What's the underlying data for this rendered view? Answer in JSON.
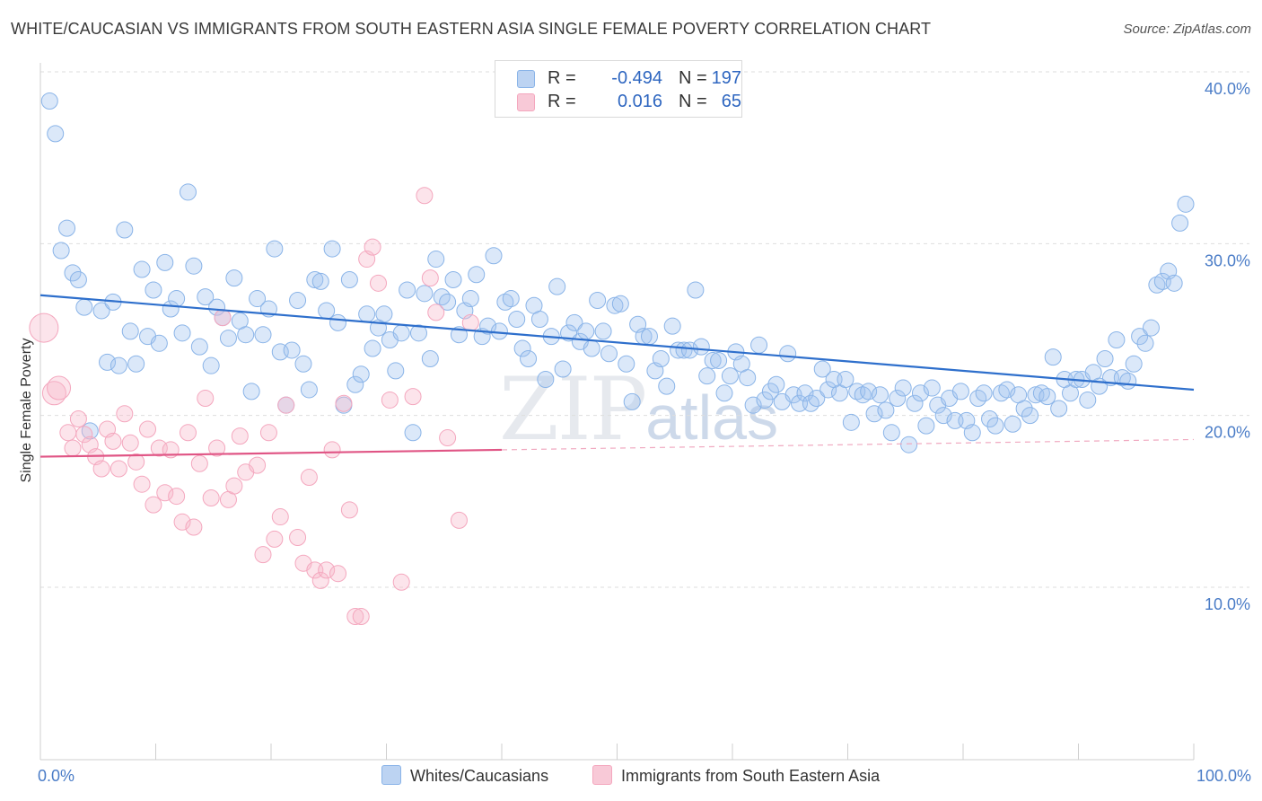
{
  "title": "WHITE/CAUCASIAN VS IMMIGRANTS FROM SOUTH EASTERN ASIA SINGLE FEMALE POVERTY CORRELATION CHART",
  "source": "Source: ZipAtlas.com",
  "watermark": {
    "zip": "ZIP",
    "atlas": "atlas"
  },
  "legend": {
    "rows": [
      {
        "r_label": "R =",
        "r_value": "-0.494",
        "n_label": "N =",
        "n_value": "197"
      },
      {
        "r_label": "R =",
        "r_value": "0.016",
        "n_label": "N =",
        "n_value": "65"
      }
    ]
  },
  "chart_data": {
    "type": "scatter",
    "ylabel": "Single Female Poverty",
    "xlim": [
      0,
      100
    ],
    "ylim": [
      0,
      42
    ],
    "x_ticks": [
      "0.0%",
      "100.0%"
    ],
    "y_ticks": [
      {
        "value": 10,
        "label": "10.0%"
      },
      {
        "value": 20,
        "label": "20.0%"
      },
      {
        "value": 30,
        "label": "30.0%"
      },
      {
        "value": 40,
        "label": "40.0%"
      }
    ],
    "grid": true,
    "legend_position": "top-center",
    "series": [
      {
        "name": "Whites/Caucasians",
        "color": "#8ab4e8",
        "line_color": "#2e6fcc",
        "trend": {
          "x0": 0,
          "y0": 27.0,
          "x1": 100,
          "y1": 21.5
        },
        "points": [
          [
            0.8,
            38.3
          ],
          [
            1.3,
            36.4
          ],
          [
            1.8,
            29.6
          ],
          [
            2.3,
            30.9
          ],
          [
            2.8,
            28.3
          ],
          [
            3.3,
            27.9
          ],
          [
            3.8,
            26.3
          ],
          [
            4.3,
            19.1
          ],
          [
            5.3,
            26.1
          ],
          [
            5.8,
            23.1
          ],
          [
            6.3,
            26.6
          ],
          [
            6.8,
            22.9
          ],
          [
            7.3,
            30.8
          ],
          [
            7.8,
            24.9
          ],
          [
            8.3,
            23.0
          ],
          [
            8.8,
            28.5
          ],
          [
            9.3,
            24.6
          ],
          [
            9.8,
            27.3
          ],
          [
            10.3,
            24.2
          ],
          [
            10.8,
            28.9
          ],
          [
            11.3,
            26.2
          ],
          [
            11.8,
            26.8
          ],
          [
            12.3,
            24.8
          ],
          [
            12.8,
            33.0
          ],
          [
            13.3,
            28.7
          ],
          [
            13.8,
            24.0
          ],
          [
            14.3,
            26.9
          ],
          [
            14.8,
            22.9
          ],
          [
            15.3,
            26.3
          ],
          [
            15.8,
            25.7
          ],
          [
            16.3,
            24.5
          ],
          [
            16.8,
            28.0
          ],
          [
            17.3,
            25.5
          ],
          [
            17.8,
            24.7
          ],
          [
            18.3,
            21.4
          ],
          [
            18.8,
            26.8
          ],
          [
            19.3,
            24.7
          ],
          [
            19.8,
            26.2
          ],
          [
            20.3,
            29.7
          ],
          [
            20.8,
            23.7
          ],
          [
            21.3,
            20.6
          ],
          [
            21.8,
            23.8
          ],
          [
            22.3,
            26.7
          ],
          [
            22.8,
            23.0
          ],
          [
            23.3,
            21.5
          ],
          [
            23.8,
            27.9
          ],
          [
            24.3,
            27.8
          ],
          [
            24.8,
            26.1
          ],
          [
            25.3,
            29.7
          ],
          [
            25.8,
            25.4
          ],
          [
            26.3,
            20.6
          ],
          [
            26.8,
            27.9
          ],
          [
            27.3,
            21.8
          ],
          [
            27.8,
            22.4
          ],
          [
            28.3,
            25.9
          ],
          [
            28.8,
            23.9
          ],
          [
            29.3,
            25.1
          ],
          [
            29.8,
            25.9
          ],
          [
            30.3,
            24.4
          ],
          [
            30.8,
            22.6
          ],
          [
            31.3,
            24.8
          ],
          [
            31.8,
            27.3
          ],
          [
            32.3,
            19.0
          ],
          [
            32.8,
            24.8
          ],
          [
            33.3,
            27.1
          ],
          [
            33.8,
            23.3
          ],
          [
            34.3,
            29.1
          ],
          [
            34.8,
            26.9
          ],
          [
            35.3,
            26.6
          ],
          [
            35.8,
            27.9
          ],
          [
            36.3,
            24.7
          ],
          [
            36.8,
            26.1
          ],
          [
            37.3,
            26.8
          ],
          [
            37.8,
            28.2
          ],
          [
            38.3,
            24.6
          ],
          [
            38.8,
            25.2
          ],
          [
            39.3,
            29.3
          ],
          [
            39.8,
            24.9
          ],
          [
            40.3,
            26.6
          ],
          [
            40.8,
            26.8
          ],
          [
            41.3,
            25.6
          ],
          [
            41.8,
            23.9
          ],
          [
            42.3,
            23.3
          ],
          [
            42.8,
            26.4
          ],
          [
            43.3,
            25.6
          ],
          [
            43.8,
            22.1
          ],
          [
            44.3,
            24.6
          ],
          [
            44.8,
            27.5
          ],
          [
            45.3,
            22.7
          ],
          [
            45.8,
            24.8
          ],
          [
            46.3,
            25.4
          ],
          [
            46.8,
            24.3
          ],
          [
            47.3,
            24.9
          ],
          [
            47.8,
            23.9
          ],
          [
            48.3,
            26.7
          ],
          [
            48.8,
            24.9
          ],
          [
            49.3,
            23.6
          ],
          [
            49.8,
            26.4
          ],
          [
            50.3,
            26.5
          ],
          [
            50.8,
            23.0
          ],
          [
            51.3,
            20.8
          ],
          [
            51.8,
            25.3
          ],
          [
            52.3,
            24.6
          ],
          [
            52.8,
            24.6
          ],
          [
            53.3,
            22.6
          ],
          [
            53.8,
            23.3
          ],
          [
            54.3,
            21.7
          ],
          [
            54.8,
            25.2
          ],
          [
            55.3,
            23.8
          ],
          [
            55.8,
            23.8
          ],
          [
            56.3,
            23.8
          ],
          [
            56.8,
            27.3
          ],
          [
            57.3,
            24.0
          ],
          [
            57.8,
            22.3
          ],
          [
            58.3,
            23.2
          ],
          [
            58.8,
            23.2
          ],
          [
            59.3,
            21.3
          ],
          [
            59.8,
            22.3
          ],
          [
            60.3,
            23.7
          ],
          [
            60.8,
            23.0
          ],
          [
            61.3,
            22.2
          ],
          [
            61.8,
            20.6
          ],
          [
            62.3,
            24.1
          ],
          [
            62.8,
            20.9
          ],
          [
            63.3,
            21.4
          ],
          [
            63.8,
            21.8
          ],
          [
            64.3,
            20.8
          ],
          [
            64.8,
            23.6
          ],
          [
            65.3,
            21.2
          ],
          [
            65.8,
            20.7
          ],
          [
            66.3,
            21.3
          ],
          [
            66.8,
            20.7
          ],
          [
            67.3,
            21.0
          ],
          [
            67.8,
            22.7
          ],
          [
            68.3,
            21.5
          ],
          [
            68.8,
            22.1
          ],
          [
            69.3,
            21.3
          ],
          [
            69.8,
            22.1
          ],
          [
            70.3,
            19.6
          ],
          [
            70.8,
            21.4
          ],
          [
            71.3,
            21.2
          ],
          [
            71.8,
            21.4
          ],
          [
            72.3,
            20.1
          ],
          [
            72.8,
            21.2
          ],
          [
            73.3,
            20.3
          ],
          [
            73.8,
            19.0
          ],
          [
            74.3,
            21.0
          ],
          [
            74.8,
            21.6
          ],
          [
            75.3,
            18.3
          ],
          [
            75.8,
            20.7
          ],
          [
            76.3,
            21.3
          ],
          [
            76.8,
            19.4
          ],
          [
            77.3,
            21.6
          ],
          [
            77.8,
            20.6
          ],
          [
            78.3,
            20.0
          ],
          [
            78.8,
            21.0
          ],
          [
            79.3,
            19.7
          ],
          [
            79.8,
            21.4
          ],
          [
            80.3,
            19.7
          ],
          [
            80.8,
            19.0
          ],
          [
            81.3,
            21.0
          ],
          [
            81.8,
            21.3
          ],
          [
            82.3,
            19.8
          ],
          [
            82.8,
            19.4
          ],
          [
            83.3,
            21.3
          ],
          [
            83.8,
            21.5
          ],
          [
            84.3,
            19.5
          ],
          [
            84.8,
            21.2
          ],
          [
            85.3,
            20.4
          ],
          [
            85.8,
            20.0
          ],
          [
            86.3,
            21.2
          ],
          [
            86.8,
            21.3
          ],
          [
            87.3,
            21.1
          ],
          [
            87.8,
            23.4
          ],
          [
            88.3,
            20.4
          ],
          [
            88.8,
            22.1
          ],
          [
            89.3,
            21.3
          ],
          [
            89.8,
            22.1
          ],
          [
            90.3,
            22.1
          ],
          [
            90.8,
            20.9
          ],
          [
            91.3,
            22.5
          ],
          [
            91.8,
            21.7
          ],
          [
            92.3,
            23.3
          ],
          [
            92.8,
            22.2
          ],
          [
            93.3,
            24.4
          ],
          [
            93.8,
            22.2
          ],
          [
            94.3,
            22.0
          ],
          [
            94.8,
            23.0
          ],
          [
            95.3,
            24.6
          ],
          [
            95.8,
            24.2
          ],
          [
            96.3,
            25.1
          ],
          [
            96.8,
            27.6
          ],
          [
            97.3,
            27.8
          ],
          [
            97.8,
            28.4
          ],
          [
            98.3,
            27.7
          ],
          [
            98.8,
            31.2
          ],
          [
            99.3,
            32.3
          ]
        ]
      },
      {
        "name": "Immigrants from South Eastern Asia",
        "color": "#f4a7be",
        "line_color": "#e05585",
        "trend": {
          "x0": 0,
          "y0": 17.6,
          "x1": 40,
          "y1": 18.0
        },
        "trend_dashed": {
          "x0": 40,
          "y0": 18.0,
          "x1": 100,
          "y1": 18.6
        },
        "points": [
          [
            0.3,
            25.1
          ],
          [
            1.2,
            21.3
          ],
          [
            1.6,
            21.6
          ],
          [
            2.4,
            19.0
          ],
          [
            2.8,
            18.1
          ],
          [
            3.3,
            19.8
          ],
          [
            3.8,
            18.9
          ],
          [
            4.3,
            18.3
          ],
          [
            4.8,
            17.6
          ],
          [
            5.3,
            16.9
          ],
          [
            5.8,
            19.2
          ],
          [
            6.3,
            18.5
          ],
          [
            6.8,
            16.9
          ],
          [
            7.3,
            20.1
          ],
          [
            7.8,
            18.4
          ],
          [
            8.3,
            17.3
          ],
          [
            8.8,
            16.0
          ],
          [
            9.3,
            19.2
          ],
          [
            9.8,
            14.8
          ],
          [
            10.3,
            18.1
          ],
          [
            10.8,
            15.5
          ],
          [
            11.3,
            18.0
          ],
          [
            11.8,
            15.3
          ],
          [
            12.3,
            13.8
          ],
          [
            12.8,
            19.0
          ],
          [
            13.3,
            13.5
          ],
          [
            13.8,
            17.2
          ],
          [
            14.3,
            21.0
          ],
          [
            14.8,
            15.2
          ],
          [
            15.3,
            18.1
          ],
          [
            15.8,
            25.7
          ],
          [
            16.3,
            15.1
          ],
          [
            16.8,
            15.9
          ],
          [
            17.3,
            18.8
          ],
          [
            17.8,
            16.7
          ],
          [
            18.8,
            17.1
          ],
          [
            19.3,
            11.9
          ],
          [
            19.8,
            19.0
          ],
          [
            20.3,
            12.8
          ],
          [
            20.8,
            14.1
          ],
          [
            21.3,
            20.6
          ],
          [
            22.3,
            12.9
          ],
          [
            22.8,
            11.4
          ],
          [
            23.3,
            16.4
          ],
          [
            23.8,
            11.0
          ],
          [
            24.3,
            10.4
          ],
          [
            24.8,
            11.0
          ],
          [
            25.3,
            18.0
          ],
          [
            25.8,
            10.8
          ],
          [
            26.3,
            20.7
          ],
          [
            26.8,
            14.5
          ],
          [
            27.3,
            8.3
          ],
          [
            27.8,
            8.3
          ],
          [
            28.3,
            29.1
          ],
          [
            28.8,
            29.8
          ],
          [
            29.3,
            27.7
          ],
          [
            30.3,
            20.9
          ],
          [
            31.3,
            10.3
          ],
          [
            32.3,
            21.1
          ],
          [
            33.3,
            32.8
          ],
          [
            33.8,
            28.0
          ],
          [
            34.3,
            26.0
          ],
          [
            35.3,
            18.7
          ],
          [
            36.3,
            13.9
          ],
          [
            37.3,
            25.4
          ]
        ]
      }
    ]
  }
}
